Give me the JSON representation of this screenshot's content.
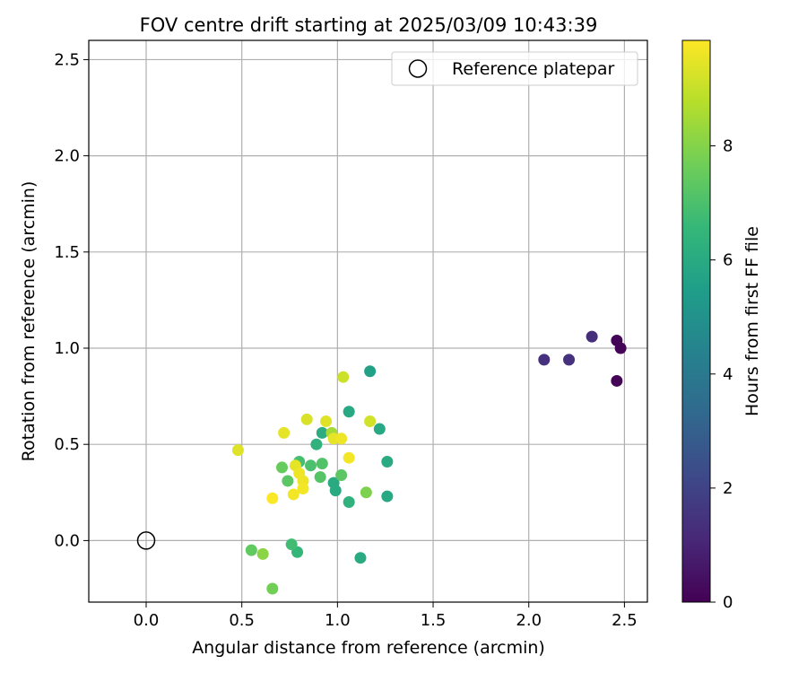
{
  "chart_data": {
    "type": "scatter",
    "title": "FOV centre drift starting at 2025/03/09 10:43:39",
    "xlabel": "Angular distance from reference (arcmin)",
    "ylabel": "Rotation from reference (arcmin)",
    "xlim": [
      -0.3,
      2.62
    ],
    "ylim": [
      -0.32,
      2.6
    ],
    "xticks": [
      "0.0",
      "0.5",
      "1.0",
      "1.5",
      "2.0",
      "2.5"
    ],
    "yticks": [
      "0.0",
      "0.5",
      "1.0",
      "1.5",
      "2.0",
      "2.5"
    ],
    "grid": true,
    "legend": {
      "placement": "top-right",
      "entries": [
        "Reference platepar"
      ]
    },
    "reference_point": {
      "x": 0.0,
      "y": 0.0
    },
    "colorbar": {
      "label": "Hours from first FF file",
      "range": [
        0,
        9.85
      ],
      "ticks": [
        "0",
        "2",
        "4",
        "6",
        "8"
      ],
      "colormap": [
        "#440154",
        "#482878",
        "#3e4989",
        "#31688e",
        "#26828e",
        "#1f9e89",
        "#35b779",
        "#6ece58",
        "#b5de2b",
        "#fde725"
      ]
    },
    "points": [
      {
        "x": 2.46,
        "y": 1.04,
        "c": 0.1
      },
      {
        "x": 2.48,
        "y": 1.0,
        "c": 0.1
      },
      {
        "x": 2.46,
        "y": 0.83,
        "c": 0.1
      },
      {
        "x": 2.33,
        "y": 1.06,
        "c": 1.3
      },
      {
        "x": 2.08,
        "y": 0.94,
        "c": 1.4
      },
      {
        "x": 2.21,
        "y": 0.94,
        "c": 1.4
      },
      {
        "x": 1.17,
        "y": 0.88,
        "c": 5.6
      },
      {
        "x": 1.06,
        "y": 0.67,
        "c": 5.9
      },
      {
        "x": 1.22,
        "y": 0.58,
        "c": 5.9
      },
      {
        "x": 0.92,
        "y": 0.56,
        "c": 6.1
      },
      {
        "x": 0.89,
        "y": 0.5,
        "c": 6.3
      },
      {
        "x": 1.26,
        "y": 0.41,
        "c": 6.0
      },
      {
        "x": 1.26,
        "y": 0.23,
        "c": 5.9
      },
      {
        "x": 0.98,
        "y": 0.3,
        "c": 6.0
      },
      {
        "x": 0.99,
        "y": 0.26,
        "c": 6.0
      },
      {
        "x": 1.06,
        "y": 0.2,
        "c": 6.3
      },
      {
        "x": 1.12,
        "y": -0.09,
        "c": 6.0
      },
      {
        "x": 0.79,
        "y": -0.06,
        "c": 6.5
      },
      {
        "x": 0.76,
        "y": -0.02,
        "c": 6.8
      },
      {
        "x": 0.8,
        "y": 0.41,
        "c": 6.9
      },
      {
        "x": 0.86,
        "y": 0.39,
        "c": 7.0
      },
      {
        "x": 0.92,
        "y": 0.4,
        "c": 7.1
      },
      {
        "x": 0.91,
        "y": 0.33,
        "c": 7.2
      },
      {
        "x": 1.02,
        "y": 0.34,
        "c": 7.3
      },
      {
        "x": 0.74,
        "y": 0.31,
        "c": 7.3
      },
      {
        "x": 0.71,
        "y": 0.38,
        "c": 7.5
      },
      {
        "x": 1.15,
        "y": 0.25,
        "c": 7.9
      },
      {
        "x": 0.55,
        "y": -0.05,
        "c": 7.4
      },
      {
        "x": 0.61,
        "y": -0.07,
        "c": 8.1
      },
      {
        "x": 0.66,
        "y": -0.25,
        "c": 7.7
      },
      {
        "x": 0.97,
        "y": 0.56,
        "c": 8.5
      },
      {
        "x": 1.03,
        "y": 0.85,
        "c": 9.1
      },
      {
        "x": 0.84,
        "y": 0.63,
        "c": 9.3
      },
      {
        "x": 0.94,
        "y": 0.62,
        "c": 9.4
      },
      {
        "x": 1.17,
        "y": 0.62,
        "c": 9.2
      },
      {
        "x": 0.72,
        "y": 0.56,
        "c": 9.5
      },
      {
        "x": 0.98,
        "y": 0.53,
        "c": 9.5
      },
      {
        "x": 1.02,
        "y": 0.53,
        "c": 9.6
      },
      {
        "x": 0.48,
        "y": 0.47,
        "c": 9.4
      },
      {
        "x": 1.06,
        "y": 0.43,
        "c": 9.7
      },
      {
        "x": 0.78,
        "y": 0.39,
        "c": 9.5
      },
      {
        "x": 0.8,
        "y": 0.35,
        "c": 9.6
      },
      {
        "x": 0.82,
        "y": 0.31,
        "c": 9.6
      },
      {
        "x": 0.82,
        "y": 0.27,
        "c": 9.7
      },
      {
        "x": 0.77,
        "y": 0.24,
        "c": 9.7
      },
      {
        "x": 0.66,
        "y": 0.22,
        "c": 9.8
      }
    ]
  }
}
